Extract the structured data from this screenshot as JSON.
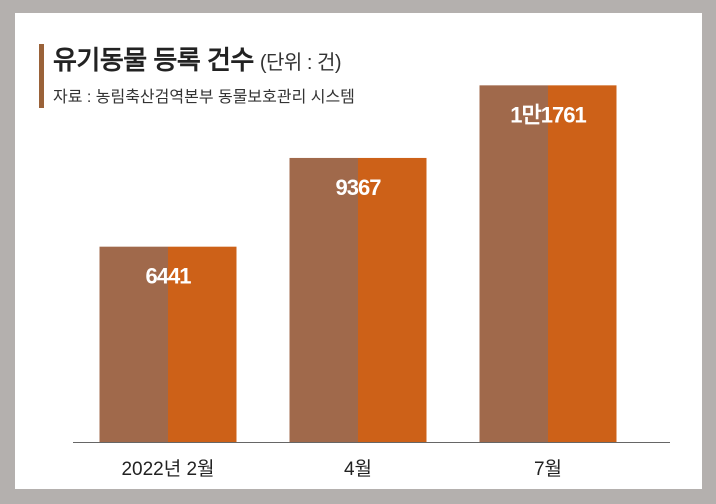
{
  "chart_data": {
    "type": "bar",
    "title": "유기동물 등록 건수",
    "unit": "(단위 : 건)",
    "source": "자료 : 농림축산검역본부 동물보호관리 시스템",
    "categories": [
      "2022년 2월",
      "4월",
      "7월"
    ],
    "values": [
      6441,
      9367,
      11761
    ],
    "data_labels": [
      "6441",
      "9367",
      "1만1761"
    ],
    "ylim": [
      0,
      12300
    ],
    "xlabel": "",
    "ylabel": "",
    "grid": false,
    "colors": {
      "left_half": "#a0694b",
      "right_half": "#cd6118",
      "axis": "#666666"
    }
  }
}
